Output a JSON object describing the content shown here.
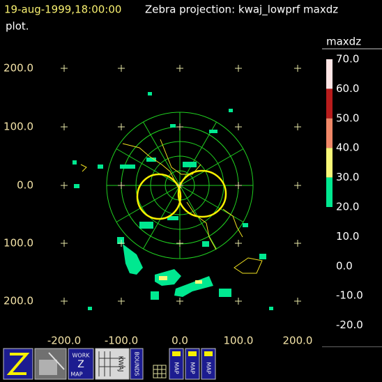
{
  "header": {
    "timestamp": "19-aug-1999,18:00:00",
    "title": "Zebra projection: kwaj_lowprf maxdz",
    "title_cont": "plot."
  },
  "plot": {
    "y_labels": [
      "200.0",
      "100.0",
      "0.0",
      "100.0",
      "200.0"
    ],
    "x_labels": [
      "-200.0",
      "-100.0",
      "0.0",
      "100.0",
      "200.0"
    ]
  },
  "colorbar": {
    "title": "maxdz",
    "labels": [
      "70.0",
      "60.0",
      "50.0",
      "40.0",
      "30.0",
      "20.0",
      "10.0",
      "0.0",
      "-10.0",
      "-20.0"
    ],
    "colors": [
      "#ffe6e6",
      "#b81c1c",
      "#f08868",
      "#f8f878",
      "#00e890"
    ]
  },
  "toolbar": {
    "work_map": [
      "WORK",
      "Z",
      "MAP"
    ],
    "kwaj": "KWAJ",
    "bounds": "BOUNDS",
    "maps": [
      "MAP",
      "MAP",
      "MAP"
    ]
  }
}
